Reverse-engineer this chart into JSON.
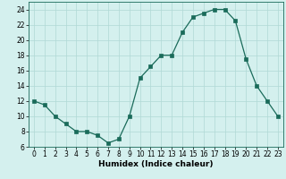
{
  "x": [
    0,
    1,
    2,
    3,
    4,
    5,
    6,
    7,
    8,
    9,
    10,
    11,
    12,
    13,
    14,
    15,
    16,
    17,
    18,
    19,
    20,
    21,
    22,
    23
  ],
  "y": [
    12,
    11.5,
    10,
    9,
    8,
    8,
    7.5,
    6.5,
    7,
    10,
    15,
    16.5,
    18,
    18,
    21,
    23,
    23.5,
    24,
    24,
    22.5,
    17.5,
    14,
    12,
    10
  ],
  "line_color": "#1a6b5a",
  "marker_color": "#1a6b5a",
  "bg_color": "#d4f0ee",
  "grid_color": "#b0d8d5",
  "xlabel": "Humidex (Indice chaleur)",
  "xlim": [
    -0.5,
    23.5
  ],
  "ylim": [
    6,
    25
  ],
  "yticks": [
    6,
    8,
    10,
    12,
    14,
    16,
    18,
    20,
    22,
    24
  ],
  "xticks": [
    0,
    1,
    2,
    3,
    4,
    5,
    6,
    7,
    8,
    9,
    10,
    11,
    12,
    13,
    14,
    15,
    16,
    17,
    18,
    19,
    20,
    21,
    22,
    23
  ],
  "label_fontsize": 6.5,
  "tick_fontsize": 5.5
}
